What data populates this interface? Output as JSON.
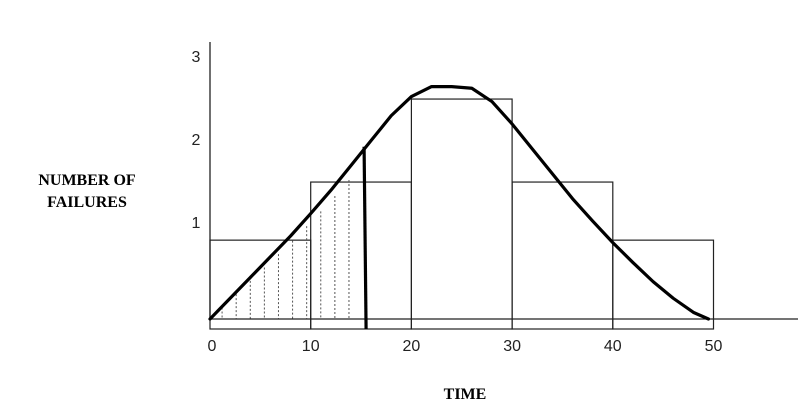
{
  "chart_data": {
    "type": "bar",
    "xlabel": "TIME",
    "ylabel": [
      "NUMBER OF",
      "FAILURES"
    ],
    "xlim": [
      0,
      55
    ],
    "ylim": [
      0,
      3.3
    ],
    "x_ticks": [
      "0",
      "10",
      "20",
      "30",
      "40",
      "50"
    ],
    "y_ticks": [
      "1",
      "2",
      "3"
    ],
    "bars": [
      {
        "x0": 0,
        "x1": 10,
        "value": 0.95
      },
      {
        "x0": 10,
        "x1": 20,
        "value": 1.65
      },
      {
        "x0": 20,
        "x1": 30,
        "value": 2.65
      },
      {
        "x0": 30,
        "x1": 40,
        "value": 1.65
      },
      {
        "x0": 40,
        "x1": 50,
        "value": 0.95
      }
    ],
    "curve": {
      "x": [
        0,
        2,
        4,
        6,
        8,
        10,
        12,
        14,
        16,
        18,
        20,
        22,
        24,
        26,
        28,
        30,
        32,
        34,
        36,
        38,
        40,
        42,
        44,
        46,
        48,
        49.5
      ],
      "y": [
        0,
        0.25,
        0.5,
        0.75,
        1.0,
        1.27,
        1.55,
        1.85,
        2.15,
        2.45,
        2.68,
        2.8,
        2.8,
        2.78,
        2.62,
        2.35,
        2.05,
        1.75,
        1.45,
        1.18,
        0.92,
        0.68,
        0.45,
        0.25,
        0.08,
        0.0
      ]
    },
    "shaded_region": {
      "x0": 0,
      "x1": 15.5
    },
    "marker_line_x": 15.5
  }
}
